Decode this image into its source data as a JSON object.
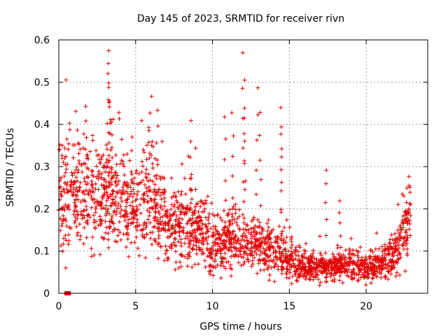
{
  "chart_data": {
    "type": "scatter",
    "title": "Day 145 of 2023, SRMTID for receiver rivn",
    "xlabel": "GPS time / hours",
    "ylabel": "SRMTID / TECUs",
    "xlim": [
      0,
      24
    ],
    "ylim": [
      0,
      0.6
    ],
    "xticks": [
      0,
      5,
      10,
      15,
      20
    ],
    "xtick_labels": [
      "0",
      "5",
      "10",
      "15",
      "20"
    ],
    "yticks": [
      0,
      0.1,
      0.2,
      0.3,
      0.4,
      0.5,
      0.6
    ],
    "ytick_labels": [
      "0",
      "0.1",
      "0.2",
      "0.3",
      "0.4",
      "0.5",
      "0.6"
    ],
    "grid": true,
    "marker": "plus",
    "color": "#e00000",
    "zero_markers": [
      {
        "x": 0.5,
        "y": 0
      },
      {
        "x": 0.65,
        "y": 0
      }
    ],
    "series": [
      {
        "name": "SRMTID",
        "trend": [
          {
            "x": 0.0,
            "y": 0.24
          },
          {
            "x": 1.0,
            "y": 0.23
          },
          {
            "x": 2.0,
            "y": 0.22
          },
          {
            "x": 3.0,
            "y": 0.23
          },
          {
            "x": 4.0,
            "y": 0.22
          },
          {
            "x": 5.0,
            "y": 0.2
          },
          {
            "x": 6.0,
            "y": 0.22
          },
          {
            "x": 7.0,
            "y": 0.17
          },
          {
            "x": 8.0,
            "y": 0.16
          },
          {
            "x": 9.0,
            "y": 0.17
          },
          {
            "x": 10.0,
            "y": 0.12
          },
          {
            "x": 11.0,
            "y": 0.13
          },
          {
            "x": 12.0,
            "y": 0.12
          },
          {
            "x": 13.0,
            "y": 0.11
          },
          {
            "x": 14.0,
            "y": 0.1
          },
          {
            "x": 15.0,
            "y": 0.08
          },
          {
            "x": 16.0,
            "y": 0.07
          },
          {
            "x": 17.0,
            "y": 0.06
          },
          {
            "x": 18.0,
            "y": 0.06
          },
          {
            "x": 19.0,
            "y": 0.07
          },
          {
            "x": 20.0,
            "y": 0.06
          },
          {
            "x": 21.0,
            "y": 0.07
          },
          {
            "x": 22.0,
            "y": 0.1
          },
          {
            "x": 22.8,
            "y": 0.16
          }
        ],
        "spikes": [
          {
            "x": 1.8,
            "y": 0.45
          },
          {
            "x": 3.2,
            "y": 0.58
          },
          {
            "x": 3.25,
            "y": 0.55
          },
          {
            "x": 3.3,
            "y": 0.5
          },
          {
            "x": 3.35,
            "y": 0.46
          },
          {
            "x": 3.5,
            "y": 0.38
          },
          {
            "x": 5.9,
            "y": 0.43
          },
          {
            "x": 6.4,
            "y": 0.44
          },
          {
            "x": 8.6,
            "y": 0.41
          },
          {
            "x": 10.8,
            "y": 0.42
          },
          {
            "x": 11.3,
            "y": 0.43
          },
          {
            "x": 12.0,
            "y": 0.57
          },
          {
            "x": 12.05,
            "y": 0.51
          },
          {
            "x": 12.1,
            "y": 0.42
          },
          {
            "x": 12.9,
            "y": 0.49
          },
          {
            "x": 13.1,
            "y": 0.43
          },
          {
            "x": 14.5,
            "y": 0.44
          },
          {
            "x": 14.45,
            "y": 0.4
          },
          {
            "x": 17.4,
            "y": 0.3
          },
          {
            "x": 18.3,
            "y": 0.22
          },
          {
            "x": 22.8,
            "y": 0.28
          }
        ],
        "x_range": [
          0.0,
          22.9
        ],
        "point_count": 2200
      }
    ]
  }
}
